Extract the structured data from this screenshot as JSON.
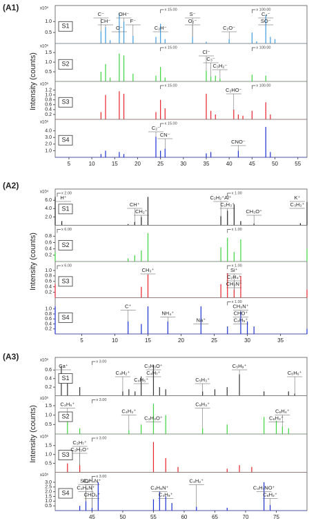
{
  "chart_data": [
    {
      "type": "bar",
      "label": "(A1)",
      "y_label": "Intensity (counts)",
      "xlim": [
        2,
        57
      ],
      "xticks": [
        5,
        10,
        15,
        20,
        25,
        30,
        35,
        40,
        45,
        50,
        55
      ],
      "panels": [
        {
          "name": "S1",
          "color": "#3d9be0",
          "scale_label": "x10⁵",
          "ylim": [
            0,
            1.45
          ],
          "yticks": [
            0.5,
            {
              "value": 1,
              "label": "1.0"
            }
          ],
          "x": [
            12,
            13,
            14,
            16,
            17,
            19,
            24,
            25,
            26,
            32,
            35,
            40,
            45,
            46,
            48,
            49,
            50
          ],
          "values": [
            0.55,
            0.75,
            0.15,
            1.4,
            1.0,
            0.35,
            0.3,
            0.9,
            0.2,
            0.3,
            0.08,
            0.2,
            0.5,
            0.1,
            1.3,
            0.3,
            0.2
          ],
          "annotations": [
            {
              "text": "C⁻",
              "x": 12
            },
            {
              "text": "CH⁻",
              "x": 13
            },
            {
              "text": "O⁻",
              "x": 16
            },
            {
              "text": "OH⁻",
              "x": 17
            },
            {
              "text": "F⁻",
              "x": 19
            },
            {
              "text": "C₂H⁻",
              "x": 25
            },
            {
              "text": "S⁻",
              "x": 32
            },
            {
              "text": "O₂⁻",
              "x": 32
            },
            {
              "text": "C₂O⁻",
              "x": 40
            },
            {
              "text": "C₄⁻",
              "x": 48
            },
            {
              "text": "SO⁻",
              "x": 48
            }
          ],
          "zooms": [
            {
              "label": "x 15.00",
              "x": 25
            },
            {
              "label": "x 100.00",
              "x": 45
            }
          ]
        },
        {
          "name": "S2",
          "color": "#3cd43c",
          "scale_label": "x10⁵",
          "ylim": [
            0,
            1.65
          ],
          "yticks": [
            0.5,
            {
              "value": 1,
              "label": "1.0"
            },
            1.5
          ],
          "x": [
            12,
            13,
            14,
            16,
            17,
            19,
            24,
            25,
            26,
            35,
            36,
            37,
            38,
            45,
            48
          ],
          "values": [
            0.5,
            0.9,
            0.2,
            1.45,
            1.35,
            0.4,
            0.3,
            0.75,
            0.2,
            0.55,
            0.25,
            0.3,
            0.15,
            0.35,
            0.3
          ],
          "annotations": [
            {
              "text": "Cl⁻",
              "x": 35
            },
            {
              "text": "C₃⁻",
              "x": 36
            },
            {
              "text": "C₃H₂⁻",
              "x": 38
            }
          ],
          "zooms": [
            {
              "label": "x 15.00",
              "x": 25
            },
            {
              "label": "x 100.00",
              "x": 45
            }
          ]
        },
        {
          "name": "S3",
          "color": "#e8202a",
          "scale_label": "x10⁵",
          "ylim": [
            0,
            1.3
          ],
          "yticks": [
            0.2,
            0.4,
            0.6,
            0.8,
            {
              "value": 1,
              "label": "1.0"
            },
            1.2
          ],
          "x": [
            12,
            13,
            16,
            17,
            24,
            25,
            26,
            35,
            36,
            37,
            41,
            42,
            43,
            45,
            48,
            49
          ],
          "values": [
            0.3,
            1.0,
            1.15,
            1.05,
            0.3,
            0.8,
            0.45,
            1.05,
            0.35,
            0.2,
            0.4,
            0.2,
            0.15,
            0.35,
            0.7,
            0.2
          ],
          "annotations": [
            {
              "text": "C₂HO⁻",
              "x": 41
            }
          ],
          "zooms": [
            {
              "label": "x 15.00",
              "x": 25
            },
            {
              "label": "x 100.00",
              "x": 45
            }
          ]
        },
        {
          "name": "S4",
          "color": "#1a2fd4",
          "scale_label": "x10⁵",
          "ylim": [
            0,
            4.8
          ],
          "yticks": [
            {
              "value": 1,
              "label": "1.0"
            },
            {
              "value": 2,
              "label": "2.0"
            },
            {
              "value": 3,
              "label": "3.0"
            },
            {
              "value": 4,
              "label": "4.0"
            }
          ],
          "x": [
            12,
            13,
            16,
            17,
            24,
            25,
            26,
            35,
            36,
            42,
            48,
            49
          ],
          "values": [
            0.5,
            1.0,
            0.8,
            0.5,
            3.1,
            1.0,
            1.3,
            0.6,
            0.8,
            1.0,
            4.6,
            0.8
          ],
          "annotations": [
            {
              "text": "C₂⁻",
              "x": 24
            },
            {
              "text": "CN⁻",
              "x": 26
            },
            {
              "text": "CNO⁻",
              "x": 42
            }
          ],
          "zooms": [
            {
              "label": "x 15.00",
              "x": 25
            }
          ]
        }
      ]
    },
    {
      "type": "bar",
      "label": "(A2)",
      "y_label": "Intensity (counts)",
      "xlim": [
        1,
        39
      ],
      "xticks": [
        5,
        10,
        15,
        20,
        25,
        30,
        35
      ],
      "panels": [
        {
          "name": "S1",
          "color": "#222222",
          "scale_label": "x10⁴",
          "ylim": [
            0,
            7.2
          ],
          "yticks": [
            {
              "value": 2,
              "label": "2.0"
            },
            {
              "value": 4,
              "label": "4.0"
            },
            {
              "value": 6,
              "label": "6.0"
            }
          ],
          "x": [
            1,
            2,
            12,
            13,
            14,
            15,
            26,
            27,
            28,
            29,
            31,
            38,
            39
          ],
          "values": [
            6.8,
            1.0,
            0.3,
            0.8,
            2.0,
            6.8,
            2.2,
            3.5,
            5.0,
            1.0,
            0.4,
            0.5,
            5.6
          ],
          "annotations": [
            {
              "text": "H⁺",
              "x": 1
            },
            {
              "text": "CH⁺",
              "x": 13
            },
            {
              "text": "CH₂⁺",
              "x": 14
            },
            {
              "text": "C₂H₂⁺Al⁺",
              "x": 26
            },
            {
              "text": "C₂H₃⁺",
              "x": 27
            },
            {
              "text": "CH₃O⁺",
              "x": 31
            },
            {
              "text": "K⁺",
              "x": 39
            },
            {
              "text": "C₃H₃⁺",
              "x": 39
            }
          ],
          "zooms": [
            {
              "label": "x 2.00",
              "x": 1
            },
            {
              "label": "x 1.00",
              "x": 27
            }
          ]
        },
        {
          "name": "S2",
          "color": "#3cd43c",
          "ylim": [
            0,
            0.95
          ],
          "yticks": [
            0.2,
            0.4,
            0.6,
            0.8
          ],
          "x": [
            1,
            12,
            13,
            14,
            15,
            26,
            27,
            28,
            29,
            39
          ],
          "values": [
            0.3,
            0.1,
            0.2,
            0.35,
            0.9,
            0.45,
            0.75,
            0.3,
            0.7,
            0.4
          ],
          "annotations": [],
          "zooms": [
            {
              "label": "x 6.00",
              "x": 1
            },
            {
              "label": "x 1.00",
              "x": 27
            }
          ]
        },
        {
          "name": "S3",
          "color": "#e8202a",
          "ylim": [
            0,
            1.1
          ],
          "yticks": [
            0.2,
            0.4,
            0.6,
            0.8,
            {
              "value": 1,
              "label": "1.0"
            }
          ],
          "x": [
            1,
            14,
            15,
            26,
            27,
            28,
            29,
            39
          ],
          "values": [
            0.5,
            0.4,
            0.85,
            0.5,
            0.9,
            0.3,
            0.8,
            0.3
          ],
          "annotations": [
            {
              "text": "CH₃⁺",
              "x": 15
            },
            {
              "text": "C₂H₄⁺",
              "x": 28
            },
            {
              "text": "CH₂N⁺",
              "x": 28
            },
            {
              "text": "Si⁺",
              "x": 28
            }
          ],
          "zooms": [
            {
              "label": "x 6.00",
              "x": 1
            },
            {
              "label": "x 1.00",
              "x": 27
            }
          ]
        },
        {
          "name": "S4",
          "color": "#1a2fd4",
          "ylim": [
            0,
            1.2
          ],
          "yticks": [
            0.2,
            0.4,
            0.6,
            0.8,
            {
              "value": 1,
              "label": "1.0"
            }
          ],
          "x": [
            1,
            12,
            14,
            15,
            18,
            23,
            27,
            29,
            30,
            31,
            39
          ],
          "values": [
            1.1,
            0.5,
            0.4,
            1.1,
            0.5,
            1.1,
            0.3,
            0.9,
            0.5,
            0.3,
            0.2
          ],
          "annotations": [
            {
              "text": "C⁺",
              "x": 12
            },
            {
              "text": "NH₄⁺",
              "x": 18
            },
            {
              "text": "Na⁺",
              "x": 23
            },
            {
              "text": "CH₃N⁺",
              "x": 29
            },
            {
              "text": "CHO⁺",
              "x": 29
            },
            {
              "text": "C₂H₅⁺",
              "x": 29
            }
          ],
          "zooms": [
            {
              "label": "x 1.00",
              "x": 27
            }
          ]
        }
      ]
    },
    {
      "type": "bar",
      "label": "(A3)",
      "y_label": "Intensity (counts)",
      "xlim": [
        39,
        80
      ],
      "xticks": [
        45,
        50,
        55,
        60,
        65,
        70,
        75
      ],
      "panels": [
        {
          "name": "S1",
          "color": "#333333",
          "scale_label": "x10⁵",
          "ylim": [
            0,
            0.75
          ],
          "yticks": [
            0.2,
            0.4,
            0.6
          ],
          "x": [
            40,
            41,
            43,
            50,
            51,
            52,
            53,
            55,
            56,
            57,
            63,
            65,
            67,
            69,
            73,
            77,
            78
          ],
          "values": [
            0.7,
            0.3,
            0.2,
            0.1,
            0.15,
            0.1,
            0.45,
            0.72,
            0.2,
            0.15,
            0.1,
            0.15,
            0.2,
            0.5,
            0.1,
            0.1,
            0.05
          ],
          "annotations": [
            {
              "text": "Ca⁺",
              "x": 40
            },
            {
              "text": "C₄H₂⁺",
              "x": 50
            },
            {
              "text": "C₄H₅⁺",
              "x": 53
            },
            {
              "text": "C₃H₃O⁺",
              "x": 55
            },
            {
              "text": "C₄H₇⁺",
              "x": 55
            },
            {
              "text": "C₅H₃⁺",
              "x": 63
            },
            {
              "text": "C₅H₉⁺",
              "x": 69
            },
            {
              "text": "C₆H₆⁺",
              "x": 78
            }
          ],
          "zooms": [
            {
              "label": "x 3.00",
              "x": 45
            }
          ]
        },
        {
          "name": "S2",
          "color": "#3cd43c",
          "scale_label": "x10⁵",
          "ylim": [
            0,
            1.7
          ],
          "yticks": [
            0.5,
            {
              "value": 1,
              "label": "1.0"
            },
            1.5
          ],
          "x": [
            41,
            43,
            51,
            53,
            55,
            57,
            63,
            67,
            73,
            75,
            76,
            77
          ],
          "values": [
            1.0,
            0.3,
            0.2,
            0.5,
            1.6,
            1.0,
            0.3,
            0.5,
            0.9,
            0.7,
            0.4,
            0.3
          ],
          "annotations": [
            {
              "text": "C₃H₅⁺",
              "x": 41
            },
            {
              "text": "C₄H₃⁺",
              "x": 51
            },
            {
              "text": "C₃H₃O⁺",
              "x": 55
            },
            {
              "text": "C₅H₃⁺",
              "x": 63
            },
            {
              "text": "C₆H₄⁺",
              "x": 76
            },
            {
              "text": "C₆H₃⁺",
              "x": 75
            }
          ],
          "zooms": [
            {
              "label": "x 3.00",
              "x": 45
            }
          ]
        },
        {
          "name": "S3",
          "color": "#e8202a",
          "scale_label": "x10⁵",
          "ylim": [
            0,
            1.8
          ],
          "yticks": [
            0.5,
            {
              "value": 1,
              "label": "1.0"
            },
            1.5
          ],
          "x": [
            41,
            43,
            55,
            57,
            59,
            67,
            69,
            71
          ],
          "values": [
            0.5,
            0.4,
            1.7,
            0.8,
            0.3,
            0.2,
            0.4,
            0.3
          ],
          "annotations": [
            {
              "text": "C₃H₇⁺",
              "x": 43
            },
            {
              "text": "C₂H₃O⁺",
              "x": 43
            }
          ],
          "zooms": [
            {
              "label": "x 3.00",
              "x": 45
            }
          ]
        },
        {
          "name": "S4",
          "color": "#1a2fd4",
          "scale_label": "x10⁵",
          "ylim": [
            0,
            3.4
          ],
          "yticks": [
            0.5,
            {
              "value": 1,
              "label": "1.0"
            },
            1.5,
            {
              "value": 2,
              "label": "2.0"
            },
            2.5,
            {
              "value": 3,
              "label": "3.0"
            }
          ],
          "x": [
            43,
            44,
            45,
            46,
            55,
            56,
            57,
            58,
            62,
            67,
            73,
            74
          ],
          "values": [
            0.5,
            1.0,
            0.3,
            3.0,
            1.2,
            2.0,
            1.5,
            0.8,
            0.4,
            0.3,
            3.0,
            0.6
          ],
          "annotations": [
            {
              "text": "SiO⁺",
              "x": 44
            },
            {
              "text": "C₂H₆N⁺",
              "x": 44
            },
            {
              "text": "CHO₂⁺",
              "x": 45
            },
            {
              "text": "C₂H₇N⁺",
              "x": 45
            },
            {
              "text": "C₃H₆N⁺",
              "x": 56
            },
            {
              "text": "C₄H₉⁺",
              "x": 57
            },
            {
              "text": "C₃H₂⁺",
              "x": 62
            },
            {
              "text": "C₃H₇NO⁺",
              "x": 73
            },
            {
              "text": "C₆H₂⁺",
              "x": 74
            }
          ],
          "zooms": [
            {
              "label": "x 3.00",
              "x": 45
            }
          ]
        }
      ]
    }
  ]
}
